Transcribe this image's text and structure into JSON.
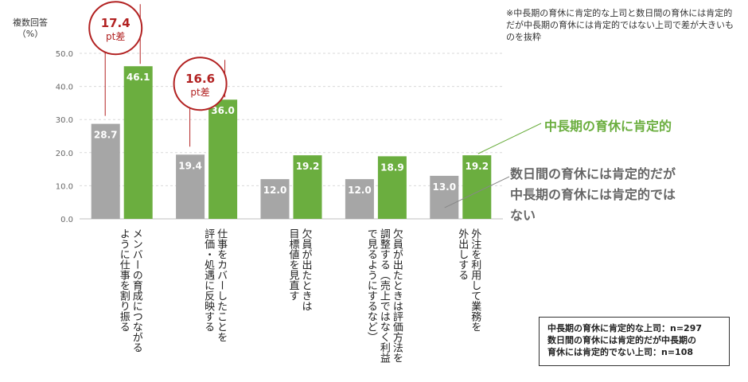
{
  "chart_data": {
    "type": "bar",
    "ylabel": "複数回答\n（%）",
    "ylim": [
      0,
      50
    ],
    "yticks": [
      "0.0",
      "10.0",
      "20.0",
      "30.0",
      "40.0",
      "50.0"
    ],
    "grid": true,
    "categories": [
      "メンバーの育成につながる\nように仕事を割り振る",
      "仕事をカバーしたことを\n評価・処遇に反映する",
      "欠員が出たときは\n目標値を見直す",
      "欠員が出たときは評価方法を\n調整する（売上ではなく利益\nで見るようにするなど）",
      "外注を利用して業務を\n外出しする"
    ],
    "series": [
      {
        "name": "数日間の育休には肯定的だが中長期の育休には肯定的ではない",
        "color": "#A6A6A6",
        "values": [
          28.7,
          19.4,
          12.0,
          12.0,
          13.0
        ]
      },
      {
        "name": "中長期の育休に肯定的",
        "color": "#6BAE3F",
        "values": [
          46.1,
          36.0,
          19.2,
          18.9,
          19.2
        ]
      }
    ],
    "annotations": [
      {
        "category_index": 0,
        "value": "17.4",
        "unit": "pt差"
      },
      {
        "category_index": 1,
        "value": "16.6",
        "unit": "pt差"
      }
    ]
  },
  "note": "※中長期の育休に肯定的な上司と数日間の育休には肯定的だが中長期の育休には肯定的ではない上司で差が大きいものを抜粋",
  "legend": {
    "green": "中長期の育休に肯定的",
    "gray": "数日間の育休には肯定的だが中長期の育休には肯定的ではない"
  },
  "sample": {
    "line1": "中長期の育休に肯定的な上司：n=297",
    "line2": "数日間の育休には肯定的だが中長期の",
    "line3": "育休には肯定的でない上司：n=108"
  },
  "colors": {
    "annotation": "#B22222",
    "grid": "#D9D9D9"
  }
}
